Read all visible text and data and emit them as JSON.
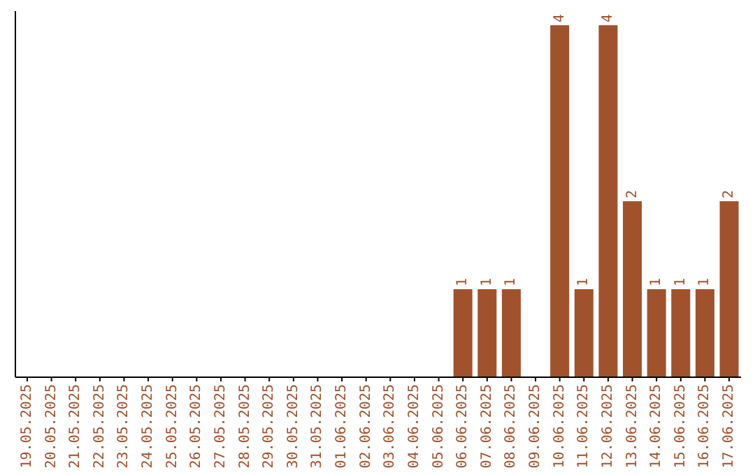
{
  "chart_data": {
    "type": "bar",
    "categories": [
      "19.05.2025",
      "20.05.2025",
      "21.05.2025",
      "22.05.2025",
      "23.05.2025",
      "24.05.2025",
      "25.05.2025",
      "26.05.2025",
      "27.05.2025",
      "28.05.2025",
      "29.05.2025",
      "30.05.2025",
      "31.05.2025",
      "01.06.2025",
      "02.06.2025",
      "03.06.2025",
      "04.06.2025",
      "05.06.2025",
      "06.06.2025",
      "07.06.2025",
      "08.06.2025",
      "09.06.2025",
      "10.06.2025",
      "11.06.2025",
      "12.06.2025",
      "13.06.2025",
      "14.06.2025",
      "15.06.2025",
      "16.06.2025",
      "17.06.2025"
    ],
    "values": [
      null,
      null,
      null,
      null,
      null,
      null,
      null,
      null,
      null,
      null,
      null,
      null,
      null,
      null,
      null,
      null,
      null,
      null,
      1,
      1,
      1,
      null,
      4,
      1,
      4,
      2,
      1,
      1,
      1,
      2
    ],
    "value_labels": [
      null,
      null,
      null,
      null,
      null,
      null,
      null,
      null,
      null,
      null,
      null,
      null,
      null,
      null,
      null,
      null,
      null,
      null,
      "1",
      "1",
      "1",
      null,
      "4",
      "1",
      "4",
      "2",
      "1",
      "1",
      "1",
      "2"
    ],
    "color": "#a0522d",
    "tick_labels": "x"
  }
}
